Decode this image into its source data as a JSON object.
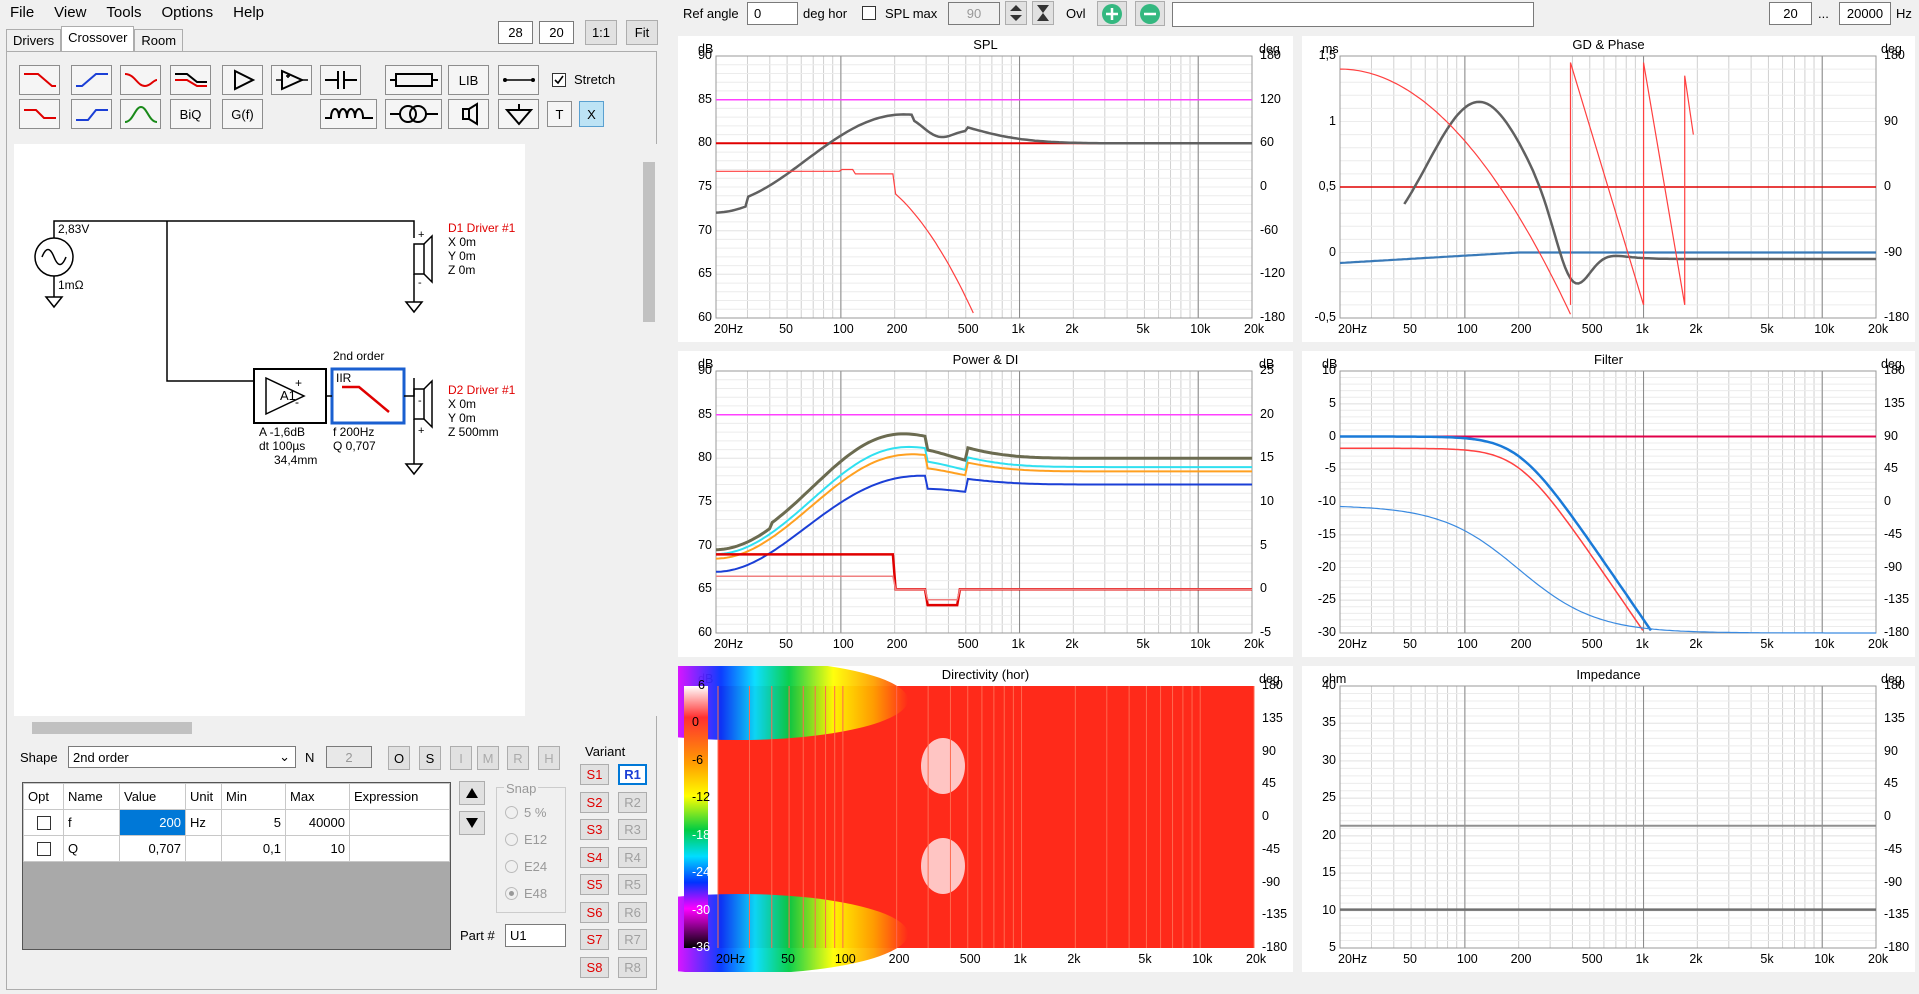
{
  "menu": [
    "File",
    "View",
    "Tools",
    "Options",
    "Help"
  ],
  "tabs": [
    "Drivers",
    "Crossover",
    "Room"
  ],
  "zoom": {
    "a": "28",
    "b": "20",
    "one": "1:1",
    "fit": "Fit"
  },
  "toolbar": {
    "lib": "LIB",
    "biq": "BiQ",
    "gf": "G(f)",
    "t": "T",
    "x": "X",
    "stretch": "Stretch"
  },
  "topbar": {
    "ref_angle_label": "Ref angle",
    "ref_angle": "0",
    "deg_hor": "deg hor",
    "splmax_label": "SPL max",
    "splmax": "90",
    "ovl": "Ovl",
    "freq_min": "20",
    "dots": "...",
    "freq_max": "20000",
    "hz": "Hz"
  },
  "schematic": {
    "src_v": "2,83V",
    "src_r": "1mΩ",
    "d1": {
      "name": "D1 Driver #1",
      "x": "X 0m",
      "y": "Y 0m",
      "z": "Z 0m"
    },
    "d2": {
      "name": "D2 Driver #1",
      "x": "X 0m",
      "y": "Y 0m",
      "z": "Z 500mm"
    },
    "amp": {
      "label": "A1",
      "a": "A  -1,6dB",
      "dt": "dt 100µs",
      "dist": "34,4mm"
    },
    "filt": {
      "order": "2nd order",
      "type": "IIR",
      "f": "f   200Hz",
      "q": "Q  0,707"
    }
  },
  "shape": {
    "label": "Shape",
    "value": "2nd order",
    "n_label": "N",
    "n_value": "2",
    "btns": [
      "O",
      "S",
      "I",
      "M",
      "R",
      "H"
    ]
  },
  "table": {
    "headers": [
      "Opt",
      "Name",
      "Value",
      "Unit",
      "Min",
      "Max",
      "Expression"
    ],
    "rows": [
      [
        "",
        "f",
        "200",
        "Hz",
        "5",
        "40000",
        ""
      ],
      [
        "",
        "Q",
        "0,707",
        "",
        "0,1",
        "10",
        ""
      ]
    ]
  },
  "snap": {
    "label": "Snap",
    "opts": [
      "5 %",
      "E12",
      "E24",
      "E48"
    ]
  },
  "variant": {
    "label": "Variant",
    "s": [
      "S1",
      "S2",
      "S3",
      "S4",
      "S5",
      "S6",
      "S7",
      "S8"
    ],
    "r": [
      "R1",
      "R2",
      "R3",
      "R4",
      "R5",
      "R6",
      "R7",
      "R8"
    ]
  },
  "part": {
    "label": "Part #",
    "value": "U1"
  },
  "xticks": [
    "20Hz",
    "50",
    "100",
    "200",
    "500",
    "1k",
    "2k",
    "5k",
    "10k",
    "20k"
  ],
  "charts": {
    "spl": {
      "title": "SPL",
      "lu": "dB",
      "ru": "deg",
      "left": [
        "90",
        "85",
        "80",
        "75",
        "70",
        "65",
        "60"
      ],
      "right": [
        "180",
        "120",
        "60",
        "0",
        "-60",
        "-120",
        "-180"
      ]
    },
    "gd": {
      "title": "GD & Phase",
      "lu": "ms",
      "ru": "deg",
      "left": [
        "1,5",
        "1",
        "0,5",
        "0",
        "-0,5"
      ],
      "right": [
        "180",
        "90",
        "0",
        "-90",
        "-180"
      ]
    },
    "pow": {
      "title": "Power & DI",
      "lu": "dB",
      "ru": "dB",
      "left": [
        "90",
        "85",
        "80",
        "75",
        "70",
        "65",
        "60"
      ],
      "right": [
        "25",
        "20",
        "15",
        "10",
        "5",
        "0",
        "-5"
      ]
    },
    "filter": {
      "title": "Filter",
      "lu": "dB",
      "ru": "deg",
      "left": [
        "10",
        "5",
        "0",
        "-5",
        "-10",
        "-15",
        "-20",
        "-25",
        "-30"
      ],
      "right": [
        "180",
        "135",
        "90",
        "45",
        "0",
        "-45",
        "-90",
        "-135",
        "-180"
      ]
    },
    "dir": {
      "title": "Directivity (hor)",
      "lu": "dB",
      "ru": "deg",
      "scale": [
        "6",
        "0",
        "-6",
        "-12",
        "-18",
        "-24",
        "-30",
        "-36"
      ],
      "right": [
        "180",
        "135",
        "90",
        "45",
        "0",
        "-45",
        "-90",
        "-135",
        "-180"
      ]
    },
    "imp": {
      "title": "Impedance",
      "lu": "ohm",
      "ru": "deg",
      "left": [
        "40",
        "35",
        "30",
        "25",
        "20",
        "15",
        "10",
        "5"
      ],
      "right": [
        "180",
        "135",
        "90",
        "45",
        "0",
        "-45",
        "-90",
        "-135",
        "-180"
      ]
    }
  }
}
